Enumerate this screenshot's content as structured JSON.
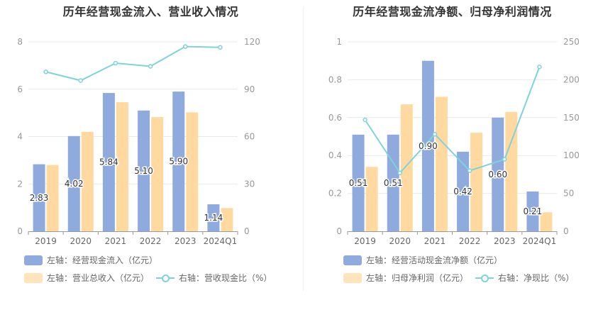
{
  "colors": {
    "bar1": "#8faadc",
    "bar2": "#ffd9a0",
    "line": "#7ed3d9"
  },
  "chart_data": [
    {
      "type": "bar",
      "title": "历年经营现金流入、营业收入情况",
      "categories": [
        "2019",
        "2020",
        "2021",
        "2022",
        "2023",
        "2024Q1"
      ],
      "left_axis": {
        "min": 0,
        "max": 8,
        "ticks": [
          "0",
          "2",
          "4",
          "6",
          "8"
        ]
      },
      "right_axis": {
        "min": 0,
        "max": 120,
        "ticks": [
          "0",
          "30",
          "60",
          "90",
          "120"
        ]
      },
      "series": [
        {
          "name": "左轴：经营现金流入（亿元）",
          "kind": "bar",
          "axis": "left",
          "values": [
            2.83,
            4.02,
            5.84,
            5.1,
            5.9,
            1.14
          ],
          "labels": [
            "2.83",
            "4.02",
            "5.84",
            "5.10",
            "5.90",
            "1.14"
          ]
        },
        {
          "name": "左轴：营业总收入（亿元）",
          "kind": "bar",
          "axis": "left",
          "values": [
            2.8,
            4.2,
            5.45,
            4.82,
            5.02,
            0.98
          ]
        },
        {
          "name": "右轴：营收现金比（%）",
          "kind": "line",
          "axis": "right",
          "values": [
            101,
            95.5,
            106.5,
            104.5,
            117,
            116.5
          ]
        }
      ]
    },
    {
      "type": "bar",
      "title": "历年经营现金流净额、归母净利润情况",
      "categories": [
        "2019",
        "2020",
        "2021",
        "2022",
        "2023",
        "2024Q1"
      ],
      "left_axis": {
        "min": 0,
        "max": 1,
        "ticks": [
          "0",
          "0.2",
          "0.4",
          "0.6",
          "0.8",
          "1"
        ]
      },
      "right_axis": {
        "min": 0,
        "max": 250,
        "ticks": [
          "0",
          "50",
          "100",
          "150",
          "200",
          "250"
        ]
      },
      "series": [
        {
          "name": "左轴：经营活动现金流净额（亿元）",
          "kind": "bar",
          "axis": "left",
          "values": [
            0.51,
            0.51,
            0.9,
            0.42,
            0.6,
            0.21
          ],
          "labels": [
            "0.51",
            "0.51",
            "0.90",
            "0.42",
            "0.60",
            "0.21"
          ]
        },
        {
          "name": "左轴：归母净利润（亿元）",
          "kind": "bar",
          "axis": "left",
          "values": [
            0.34,
            0.67,
            0.71,
            0.52,
            0.63,
            0.1
          ]
        },
        {
          "name": "右轴：净现比（%）",
          "kind": "line",
          "axis": "right",
          "values": [
            147,
            77,
            128,
            80,
            95,
            217
          ]
        }
      ]
    }
  ]
}
